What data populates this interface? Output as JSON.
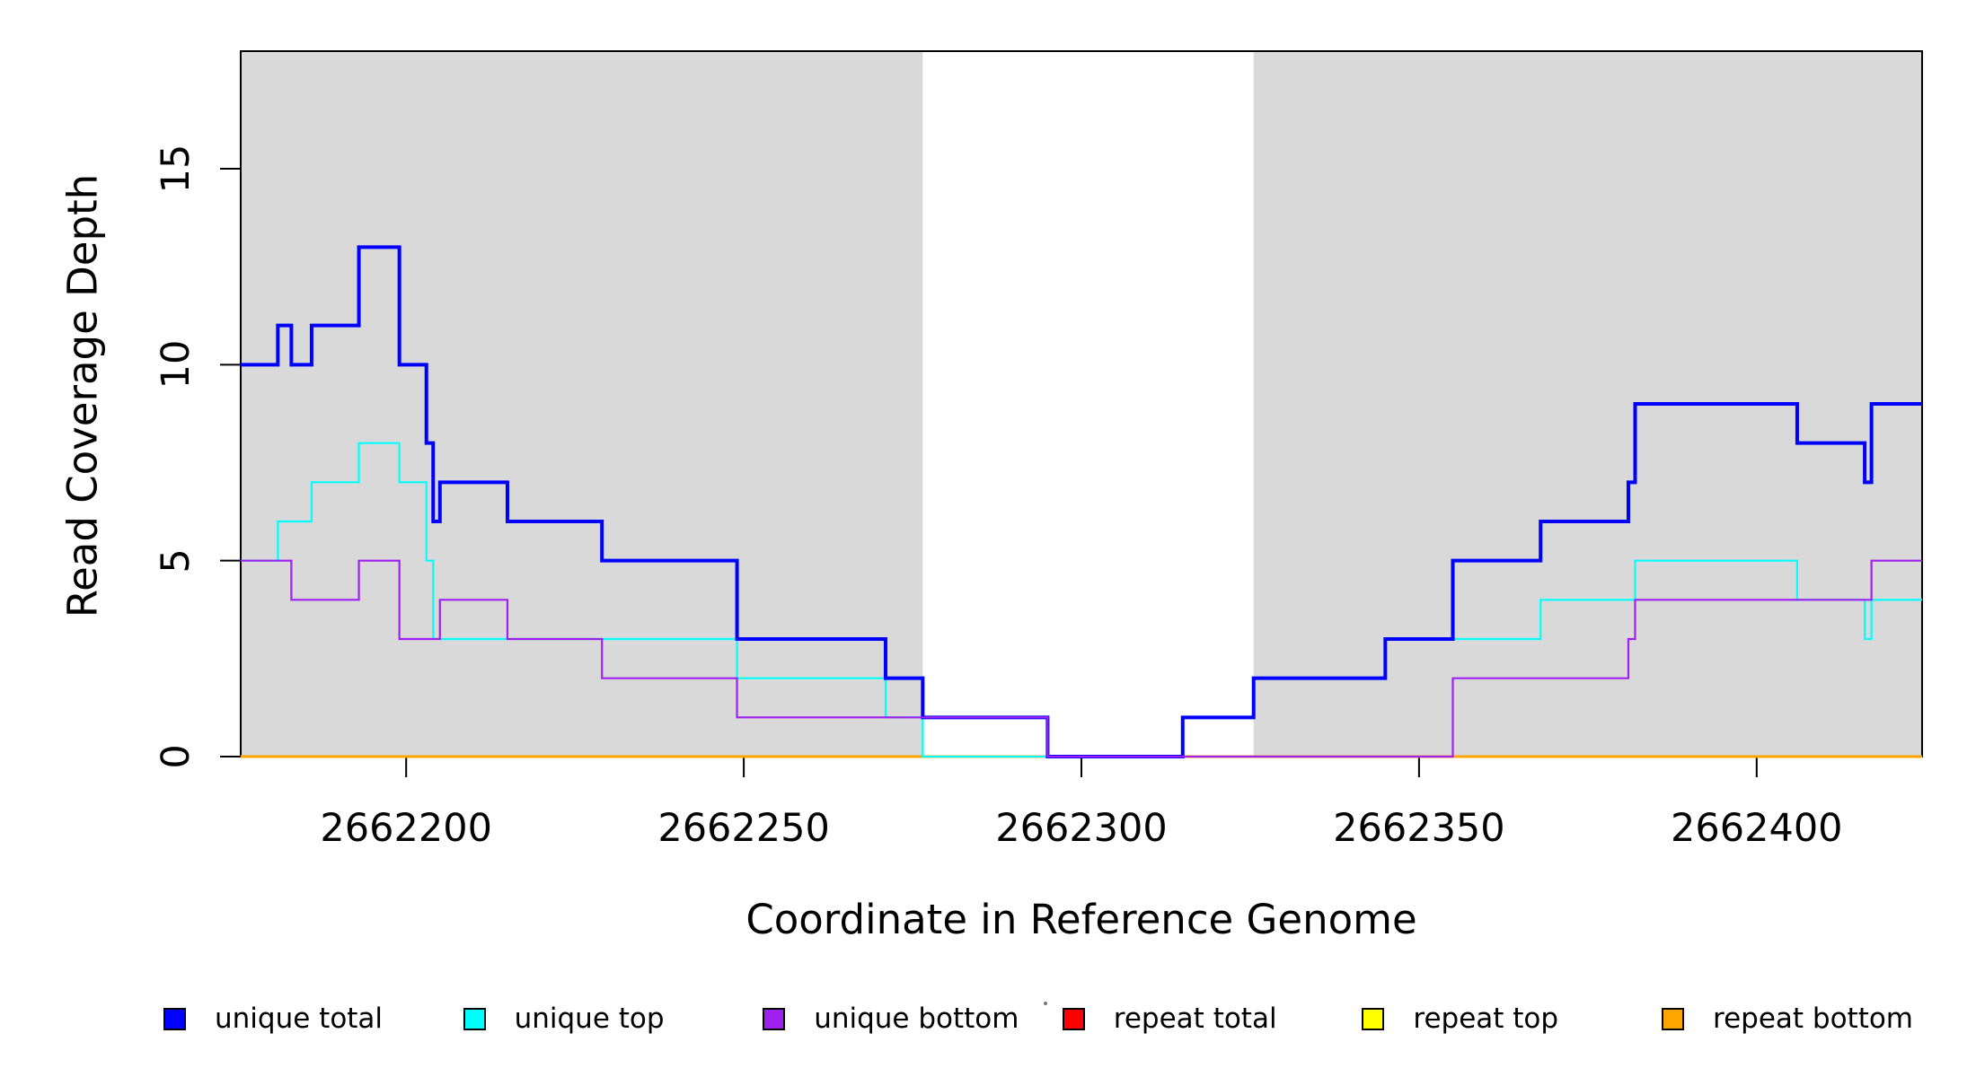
{
  "chart_data": {
    "type": "line",
    "subtype": "step",
    "title": "",
    "xlabel": "Coordinate in Reference Genome",
    "ylabel": "Read Coverage Depth",
    "xlim": [
      2662175.5,
      2662424.5
    ],
    "ylim": [
      0,
      18
    ],
    "x_ticks": [
      "2662200",
      "2662250",
      "2662300",
      "2662350",
      "2662400"
    ],
    "x_tick_values": [
      2662200,
      2662250,
      2662300,
      2662350,
      2662400
    ],
    "y_ticks": [
      "0",
      "5",
      "10",
      "15"
    ],
    "y_tick_values": [
      0,
      5,
      10,
      15
    ],
    "grid": false,
    "legend_position": "bottom",
    "plot_bg_color": "#ffffff",
    "band_color": "#D9D9D9",
    "background_bands": [
      {
        "x0": 2662175.5,
        "x1": 2662276.5
      },
      {
        "x0": 2662325.5,
        "x1": 2662424.5
      }
    ],
    "series": [
      {
        "name": "unique total",
        "color": "#0000FF",
        "width": 4,
        "steps": [
          [
            2662175.5,
            10
          ],
          [
            2662181,
            11
          ],
          [
            2662183,
            10
          ],
          [
            2662186,
            11
          ],
          [
            2662193,
            13
          ],
          [
            2662199,
            10
          ],
          [
            2662203,
            8
          ],
          [
            2662204,
            6
          ],
          [
            2662205,
            7
          ],
          [
            2662215,
            6
          ],
          [
            2662229,
            5
          ],
          [
            2662249,
            3
          ],
          [
            2662271,
            2
          ],
          [
            2662276.5,
            1
          ],
          [
            2662295,
            0
          ],
          [
            2662315,
            1
          ],
          [
            2662325.5,
            2
          ],
          [
            2662345,
            3
          ],
          [
            2662355,
            5
          ],
          [
            2662368,
            6
          ],
          [
            2662381,
            7
          ],
          [
            2662382,
            9
          ],
          [
            2662406,
            8
          ],
          [
            2662416,
            7
          ],
          [
            2662417,
            9
          ]
        ]
      },
      {
        "name": "unique top",
        "color": "#00FFFF",
        "width": 2.2,
        "steps": [
          [
            2662175.5,
            5
          ],
          [
            2662181,
            6
          ],
          [
            2662186,
            7
          ],
          [
            2662193,
            8
          ],
          [
            2662199,
            7
          ],
          [
            2662203,
            5
          ],
          [
            2662204,
            3
          ],
          [
            2662249,
            2
          ],
          [
            2662271,
            1
          ],
          [
            2662276.5,
            0
          ],
          [
            2662315,
            1
          ],
          [
            2662325.5,
            2
          ],
          [
            2662345,
            3
          ],
          [
            2662368,
            4
          ],
          [
            2662382,
            5
          ],
          [
            2662406,
            4
          ],
          [
            2662416,
            3
          ],
          [
            2662417,
            4
          ]
        ]
      },
      {
        "name": "unique bottom",
        "color": "#A020F0",
        "width": 2.2,
        "steps": [
          [
            2662175.5,
            5
          ],
          [
            2662183,
            4
          ],
          [
            2662193,
            5
          ],
          [
            2662199,
            3
          ],
          [
            2662205,
            4
          ],
          [
            2662215,
            3
          ],
          [
            2662229,
            2
          ],
          [
            2662249,
            1
          ],
          [
            2662295,
            0
          ],
          [
            2662355,
            2
          ],
          [
            2662381,
            3
          ],
          [
            2662382,
            4
          ],
          [
            2662417,
            5
          ]
        ]
      },
      {
        "name": "repeat total",
        "color": "#FF0000",
        "width": 2,
        "steps": [
          [
            2662175.5,
            0
          ]
        ]
      },
      {
        "name": "repeat top",
        "color": "#FFFF00",
        "width": 2,
        "steps": [
          [
            2662175.5,
            0
          ]
        ]
      },
      {
        "name": "repeat bottom",
        "color": "#FFA500",
        "width": 3,
        "steps": [
          [
            2662175.5,
            0
          ]
        ]
      }
    ],
    "draw_order": [
      "repeat total",
      "repeat top",
      "repeat bottom",
      "unique top",
      "unique total",
      "unique bottom"
    ]
  },
  "legend": {
    "entries": [
      {
        "label": "unique total",
        "color": "#0000FF"
      },
      {
        "label": "unique top",
        "color": "#00FFFF"
      },
      {
        "label": "unique bottom",
        "color": "#A020F0"
      },
      {
        "label": "repeat total",
        "color": "#FF0000"
      },
      {
        "label": "repeat top",
        "color": "#FFFF00"
      },
      {
        "label": "repeat bottom",
        "color": "#FFA500"
      }
    ]
  }
}
